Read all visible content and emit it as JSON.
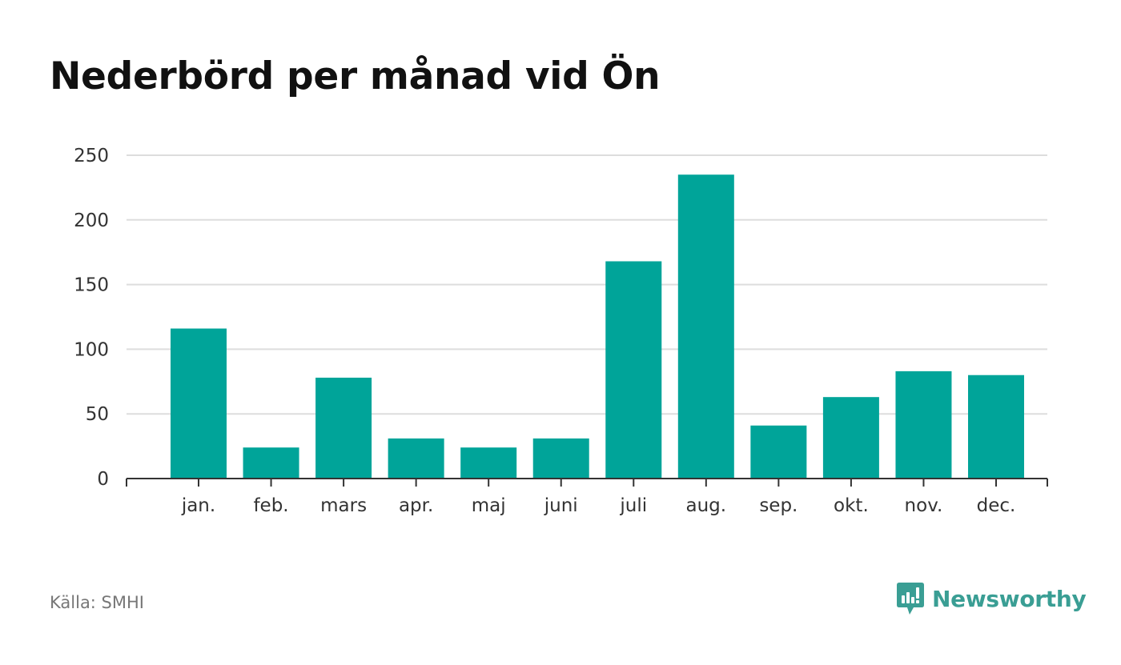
{
  "chart_data": {
    "type": "bar",
    "title": "Nederbörd per månad vid Ön",
    "categories": [
      "jan.",
      "feb.",
      "mars",
      "apr.",
      "maj",
      "juni",
      "juli",
      "aug.",
      "sep.",
      "okt.",
      "nov.",
      "dec."
    ],
    "values": [
      116,
      24,
      78,
      31,
      24,
      31,
      168,
      235,
      41,
      63,
      83,
      80
    ],
    "ylim": [
      0,
      250
    ],
    "yticks": [
      0,
      50,
      100,
      150,
      200,
      250
    ],
    "grid": true,
    "bar_color": "#00a499"
  },
  "footer": {
    "source": "Källa: SMHI",
    "brand": "Newsworthy",
    "brand_icon": "newsworthy-logo-icon",
    "brand_color": "#3a9e94"
  }
}
